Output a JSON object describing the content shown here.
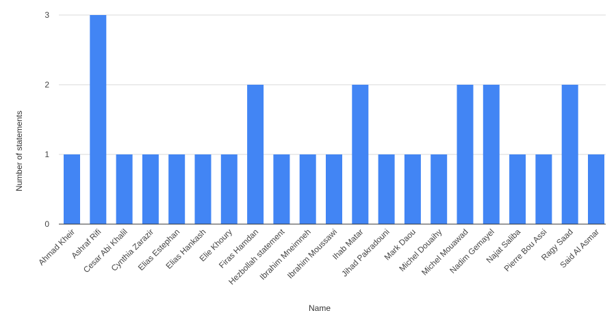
{
  "chart_data": {
    "type": "bar",
    "title": "",
    "xlabel": "Name",
    "ylabel": "Number of statements",
    "ylim": [
      0,
      3
    ],
    "yticks": [
      0,
      1,
      2,
      3
    ],
    "grid": true,
    "legend": "none",
    "categories": [
      "Ahmad Kheir",
      "Ashraf Rifi",
      "Cesar Abi Khalil",
      "Cynthia Zarazir",
      "Elias Estephan",
      "Elias Hankash",
      "Elie Khoury",
      "Firas Hamdan",
      "Hezbollah statement",
      "Ibrahim Mneimneh",
      "Ibrahim Moussawi",
      "Ihab Matar",
      "Jihad Pakradouni",
      "Mark Daou",
      "Michel Douaihy",
      "Michel Mouawad",
      "Nadim Gemayel",
      "Najat Saliba",
      "Pierre Bou Assi",
      "Ragy Saad",
      "Said Al Asmar"
    ],
    "values": [
      1,
      3,
      1,
      1,
      1,
      1,
      1,
      2,
      1,
      1,
      1,
      2,
      1,
      1,
      1,
      2,
      2,
      1,
      1,
      2,
      1
    ],
    "colors": {
      "bar": "#4285f4",
      "grid": "#d9d9d9",
      "axis": "#333333",
      "text": "#444444"
    }
  }
}
